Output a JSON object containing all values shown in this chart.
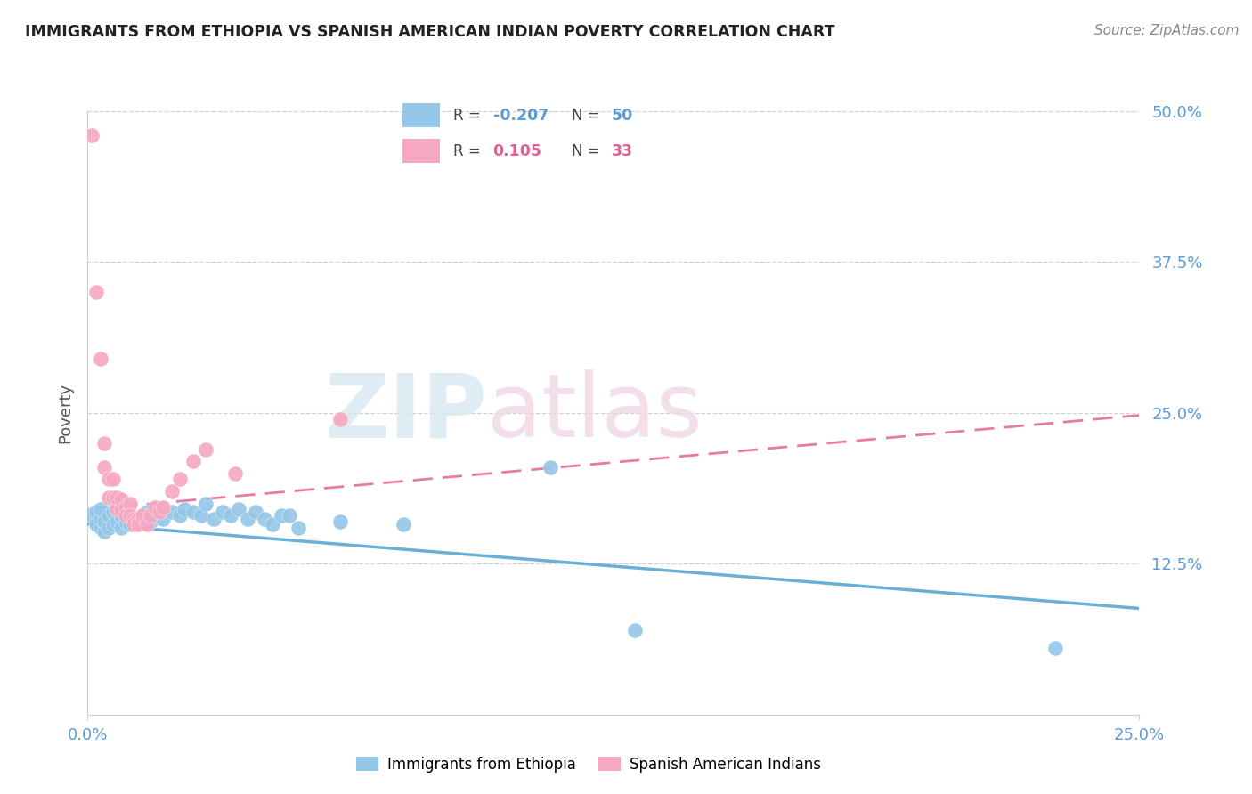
{
  "title": "IMMIGRANTS FROM ETHIOPIA VS SPANISH AMERICAN INDIAN POVERTY CORRELATION CHART",
  "source": "Source: ZipAtlas.com",
  "ylabel": "Poverty",
  "xlim": [
    0.0,
    0.25
  ],
  "ylim": [
    0.0,
    0.5
  ],
  "xtick_labels": [
    "0.0%",
    "25.0%"
  ],
  "xtick_values": [
    0.0,
    0.25
  ],
  "ytick_labels": [
    "12.5%",
    "25.0%",
    "37.5%",
    "50.0%"
  ],
  "ytick_values": [
    0.125,
    0.25,
    0.375,
    0.5
  ],
  "color_blue": "#93c6e7",
  "color_pink": "#f5a8c0",
  "color_blue_line": "#6aafd6",
  "color_pink_line": "#e87ca0",
  "watermark_zip": "ZIP",
  "watermark_atlas": "atlas",
  "blue_scatter": [
    [
      0.001,
      0.165
    ],
    [
      0.002,
      0.158
    ],
    [
      0.002,
      0.168
    ],
    [
      0.003,
      0.155
    ],
    [
      0.003,
      0.162
    ],
    [
      0.003,
      0.17
    ],
    [
      0.004,
      0.152
    ],
    [
      0.004,
      0.16
    ],
    [
      0.005,
      0.155
    ],
    [
      0.005,
      0.165
    ],
    [
      0.006,
      0.158
    ],
    [
      0.006,
      0.168
    ],
    [
      0.007,
      0.16
    ],
    [
      0.007,
      0.17
    ],
    [
      0.008,
      0.155
    ],
    [
      0.008,
      0.165
    ],
    [
      0.009,
      0.16
    ],
    [
      0.009,
      0.17
    ],
    [
      0.01,
      0.158
    ],
    [
      0.01,
      0.165
    ],
    [
      0.011,
      0.162
    ],
    [
      0.012,
      0.158
    ],
    [
      0.013,
      0.165
    ],
    [
      0.014,
      0.168
    ],
    [
      0.015,
      0.16
    ],
    [
      0.016,
      0.165
    ],
    [
      0.017,
      0.17
    ],
    [
      0.018,
      0.162
    ],
    [
      0.02,
      0.168
    ],
    [
      0.022,
      0.165
    ],
    [
      0.023,
      0.17
    ],
    [
      0.025,
      0.168
    ],
    [
      0.027,
      0.165
    ],
    [
      0.028,
      0.175
    ],
    [
      0.03,
      0.162
    ],
    [
      0.032,
      0.168
    ],
    [
      0.034,
      0.165
    ],
    [
      0.036,
      0.17
    ],
    [
      0.038,
      0.162
    ],
    [
      0.04,
      0.168
    ],
    [
      0.042,
      0.162
    ],
    [
      0.044,
      0.158
    ],
    [
      0.046,
      0.165
    ],
    [
      0.048,
      0.165
    ],
    [
      0.05,
      0.155
    ],
    [
      0.06,
      0.16
    ],
    [
      0.075,
      0.158
    ],
    [
      0.11,
      0.205
    ],
    [
      0.13,
      0.07
    ],
    [
      0.23,
      0.055
    ]
  ],
  "pink_scatter": [
    [
      0.001,
      0.48
    ],
    [
      0.002,
      0.35
    ],
    [
      0.003,
      0.295
    ],
    [
      0.004,
      0.225
    ],
    [
      0.004,
      0.205
    ],
    [
      0.005,
      0.195
    ],
    [
      0.005,
      0.18
    ],
    [
      0.006,
      0.195
    ],
    [
      0.006,
      0.18
    ],
    [
      0.007,
      0.17
    ],
    [
      0.007,
      0.18
    ],
    [
      0.008,
      0.17
    ],
    [
      0.008,
      0.178
    ],
    [
      0.009,
      0.172
    ],
    [
      0.009,
      0.165
    ],
    [
      0.01,
      0.175
    ],
    [
      0.01,
      0.165
    ],
    [
      0.011,
      0.162
    ],
    [
      0.011,
      0.158
    ],
    [
      0.012,
      0.162
    ],
    [
      0.012,
      0.158
    ],
    [
      0.013,
      0.165
    ],
    [
      0.014,
      0.158
    ],
    [
      0.015,
      0.165
    ],
    [
      0.016,
      0.172
    ],
    [
      0.017,
      0.168
    ],
    [
      0.018,
      0.172
    ],
    [
      0.02,
      0.185
    ],
    [
      0.022,
      0.195
    ],
    [
      0.025,
      0.21
    ],
    [
      0.028,
      0.22
    ],
    [
      0.035,
      0.2
    ],
    [
      0.06,
      0.245
    ]
  ],
  "blue_line_x": [
    0.0,
    0.25
  ],
  "blue_line_y": [
    0.158,
    0.088
  ],
  "pink_line_x": [
    0.0,
    0.25
  ],
  "pink_line_y": [
    0.17,
    0.248
  ],
  "grid_color": "#d0d0d0",
  "title_color": "#222222",
  "axis_label_color": "#555555",
  "tick_color": "#5b9bd5",
  "background_color": "#ffffff"
}
